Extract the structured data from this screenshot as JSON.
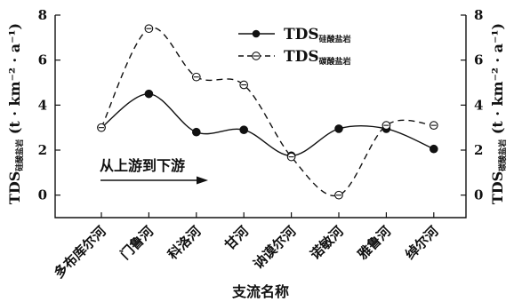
{
  "chart_data": {
    "type": "line",
    "categories": [
      "多布库尔河",
      "门鲁河",
      "科洛河",
      "甘河",
      "讷谟尔河",
      "诺敏河",
      "雅鲁河",
      "绰尔河"
    ],
    "series": [
      {
        "name_main": "TDS",
        "name_sub": "硅酸盐岩",
        "marker": "filled-circle",
        "line": "solid",
        "color": "#111111",
        "values": [
          3.0,
          4.5,
          2.8,
          2.9,
          1.75,
          2.95,
          2.95,
          2.05
        ]
      },
      {
        "name_main": "TDS",
        "name_sub": "碳酸盐岩",
        "marker": "open-circle-dash",
        "line": "dashed",
        "color": "#111111",
        "values": [
          3.0,
          7.4,
          5.25,
          4.9,
          1.7,
          0.0,
          3.1,
          3.1
        ]
      }
    ],
    "xlabel": "支流名称",
    "ylabel_left": {
      "main": "TDS",
      "sub": "硅酸盐岩",
      "unit": "(t · km⁻² · a⁻¹)"
    },
    "ylabel_right": {
      "main": "TDS",
      "sub": "碳酸盐岩",
      "unit": "(t · km⁻² · a⁻¹)"
    },
    "y_ticks": [
      "0",
      "2",
      "4",
      "6",
      "8"
    ],
    "ylim": [
      -1,
      8
    ],
    "annotation": "从上游到下游",
    "legend_position": "top-right",
    "grid": false
  }
}
